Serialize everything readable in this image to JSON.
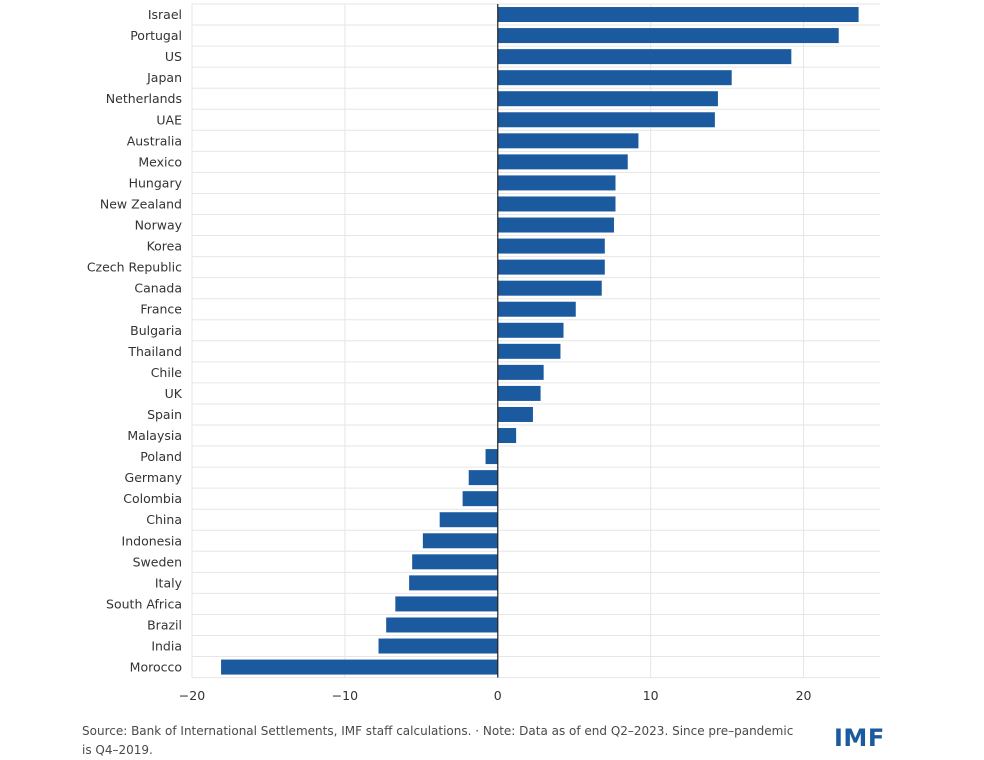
{
  "chart_data": {
    "type": "bar",
    "orientation": "horizontal",
    "categories": [
      "Israel",
      "Portugal",
      "US",
      "Japan",
      "Netherlands",
      "UAE",
      "Australia",
      "Mexico",
      "Hungary",
      "New Zealand",
      "Norway",
      "Korea",
      "Czech Republic",
      "Canada",
      "France",
      "Bulgaria",
      "Thailand",
      "Chile",
      "UK",
      "Spain",
      "Malaysia",
      "Poland",
      "Germany",
      "Colombia",
      "China",
      "Indonesia",
      "Sweden",
      "Italy",
      "South Africa",
      "Brazil",
      "India",
      "Morocco"
    ],
    "values": [
      23.6,
      22.3,
      19.2,
      15.3,
      14.4,
      14.2,
      9.2,
      8.5,
      7.7,
      7.7,
      7.6,
      7.0,
      7.0,
      6.8,
      5.1,
      4.3,
      4.1,
      3.0,
      2.8,
      2.3,
      1.2,
      -0.8,
      -1.9,
      -2.3,
      -3.8,
      -4.9,
      -5.6,
      -5.8,
      -6.7,
      -7.3,
      -7.8,
      -18.1
    ],
    "xlim": [
      -20,
      25
    ],
    "xticks": [
      -20,
      -10,
      0,
      10,
      20
    ],
    "xtick_labels": [
      "−20",
      "−10",
      "0",
      "10",
      "20"
    ],
    "grid": true,
    "bar_color": "#1c5aa0",
    "title": "",
    "xlabel": "",
    "ylabel": ""
  },
  "footer": {
    "source_note": "Source: Bank of International Settlements, IMF staff calculations. · Note: Data as of end Q2–2023. Since pre–pandemic is Q4–2019."
  },
  "logo": {
    "text": "IMF"
  }
}
